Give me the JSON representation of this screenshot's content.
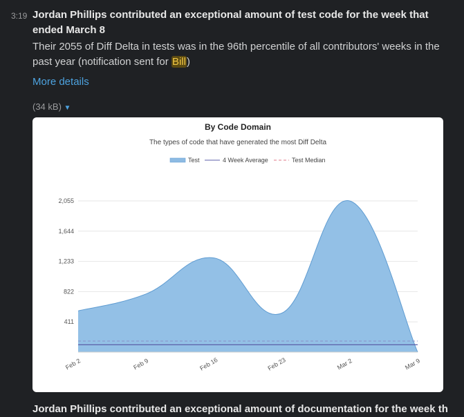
{
  "message": {
    "time": "3:19",
    "headline": "Jordan Phillips contributed an exceptional amount of test code for the week that ended March 8",
    "body_pre": "Their 2055 of Diff Delta in tests was in the 96th percentile of all contributors' weeks in the past year (notification sent for ",
    "mention": "Bill",
    "body_post": ")",
    "details_link": "More details",
    "attachment_size": "(34 kB)",
    "caret_icon": "caret-down-icon"
  },
  "chart_data": {
    "type": "area",
    "title": "By Code Domain",
    "subtitle": "The types of code that have generated the most Diff Delta",
    "legend": [
      {
        "label": "Test",
        "style": "area",
        "color": "#8dbbe3"
      },
      {
        "label": "4 Week Average",
        "style": "line",
        "color": "#5b5fa8"
      },
      {
        "label": "Test Median",
        "style": "dashed",
        "color": "#e07a8a"
      }
    ],
    "legend_position": "top",
    "categories": [
      "Feb 2",
      "Feb 9",
      "Feb 16",
      "Feb 23",
      "Mar 2",
      "Mar 9"
    ],
    "y_ticks": [
      "411",
      "822",
      "1,233",
      "1,644",
      "2,055"
    ],
    "ylim": [
      0,
      2055
    ],
    "grid": true,
    "series": [
      {
        "name": "Test",
        "values": [
          560,
          790,
          1280,
          530,
          2055,
          0
        ]
      },
      {
        "name": "4 Week Average",
        "values": [
          100,
          100,
          100,
          100,
          100,
          100
        ]
      },
      {
        "name": "Test Median",
        "values": [
          150,
          150,
          150,
          150,
          150,
          150
        ]
      }
    ]
  },
  "next_message": {
    "headline": "Jordan Phillips contributed an exceptional amount of documentation for the week that"
  }
}
